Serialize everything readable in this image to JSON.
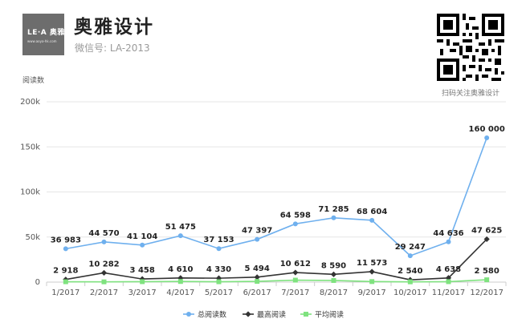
{
  "brand": {
    "logo_text": "LE·A 奥雅",
    "logo_url": "www.aoya-hk.com",
    "name": "奥雅设计",
    "subtitle": "微信号: LA-2013",
    "qr_caption": "扫码关注奥雅设计"
  },
  "colors": {
    "total": "#6fb0ee",
    "max": "#333333",
    "avg": "#7fe27f",
    "grid": "#e6e6e6",
    "text": "#333333"
  },
  "chart_data": {
    "type": "line",
    "title": "",
    "ylabel": "阅读数",
    "xlabel": "",
    "categories": [
      "1/2017",
      "2/2017",
      "3/2017",
      "4/2017",
      "5/2017",
      "6/2017",
      "7/2017",
      "8/2017",
      "9/2017",
      "10/2017",
      "11/2017",
      "12/2017"
    ],
    "ylim": [
      0,
      200000
    ],
    "yticks": [
      0,
      50000,
      100000,
      150000,
      200000
    ],
    "ytick_labels": [
      "0",
      "50k",
      "100k",
      "150k",
      "200k"
    ],
    "grid": true,
    "legend_position": "bottom",
    "series": [
      {
        "name": "总阅读数",
        "marker": "circle",
        "values": [
          36983,
          44570,
          41104,
          51475,
          37153,
          47397,
          64598,
          71285,
          68604,
          29247,
          44636,
          160000
        ],
        "labels": [
          "36 983",
          "44 570",
          "41 104",
          "51 475",
          "37 153",
          "47 397",
          "64 598",
          "71 285",
          "68 604",
          "29 247",
          "44 636",
          "160 000"
        ]
      },
      {
        "name": "最高阅读",
        "marker": "diamond",
        "values": [
          2918,
          10282,
          3458,
          4610,
          4330,
          5494,
          10612,
          8590,
          11573,
          2540,
          4638,
          47625
        ],
        "labels": [
          "2 918",
          "10 282",
          "3 458",
          "4 610",
          "4 330",
          "5 494",
          "10 612",
          "8 590",
          "11 573",
          "2 540",
          "4 638",
          "47 625"
        ]
      },
      {
        "name": "平均阅读",
        "marker": "square",
        "values": [
          400,
          300,
          500,
          700,
          400,
          800,
          2200,
          1800,
          600,
          300,
          500,
          2580
        ],
        "labels": [
          "",
          "",
          "",
          "",
          "",
          "",
          "",
          "",
          "",
          "",
          "",
          "2 580"
        ]
      }
    ]
  }
}
